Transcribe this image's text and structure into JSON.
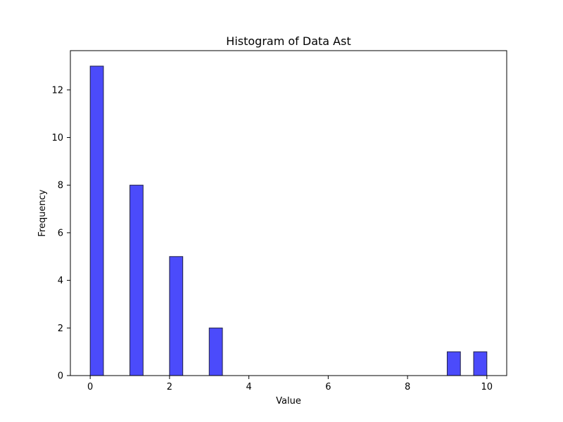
{
  "chart_data": {
    "type": "bar",
    "title": "Histogram of Data Ast",
    "xlabel": "Value",
    "ylabel": "Frequency",
    "xlim": [
      -0.5,
      10.5
    ],
    "ylim": [
      0,
      13.65
    ],
    "xticks": [
      0,
      2,
      4,
      6,
      8,
      10
    ],
    "yticks": [
      0,
      2,
      4,
      6,
      8,
      10,
      12
    ],
    "bins": [
      {
        "start": 0.0,
        "end": 0.3333,
        "count": 13
      },
      {
        "start": 1.0,
        "end": 1.3333,
        "count": 8
      },
      {
        "start": 2.0,
        "end": 2.3333,
        "count": 5
      },
      {
        "start": 3.0,
        "end": 3.3333,
        "count": 2
      },
      {
        "start": 9.0,
        "end": 9.3333,
        "count": 1
      },
      {
        "start": 9.6667,
        "end": 10.0,
        "count": 1
      }
    ],
    "bar_color": "#4b4bfb",
    "edge_color": "#222244",
    "grid": false,
    "legend": "none"
  }
}
